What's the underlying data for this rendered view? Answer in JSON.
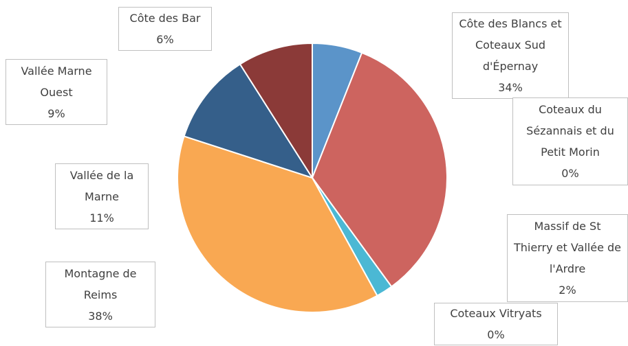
{
  "chart_data": {
    "type": "pie",
    "categories": [
      "Côte des Bar",
      "Côte des Blancs et Coteaux Sud d'Épernay",
      "Coteaux du Sézannais et du Petit Morin",
      "Massif de St Thierry et Vallée de l'Ardre",
      "Coteaux Vitryats",
      "Montagne de Reims",
      "Vallée de la Marne",
      "Vallée Marne Ouest"
    ],
    "values": [
      6,
      34,
      0,
      2,
      0,
      38,
      11,
      9
    ],
    "value_labels": [
      "6%",
      "34%",
      "0%",
      "2%",
      "0%",
      "38%",
      "11%",
      "9%"
    ],
    "colors": [
      "#5b94c9",
      "#cd645f",
      "#9bbb59",
      "#4bb8d4",
      "#8064a2",
      "#f9a852",
      "#355f8a",
      "#8b3a38"
    ]
  }
}
